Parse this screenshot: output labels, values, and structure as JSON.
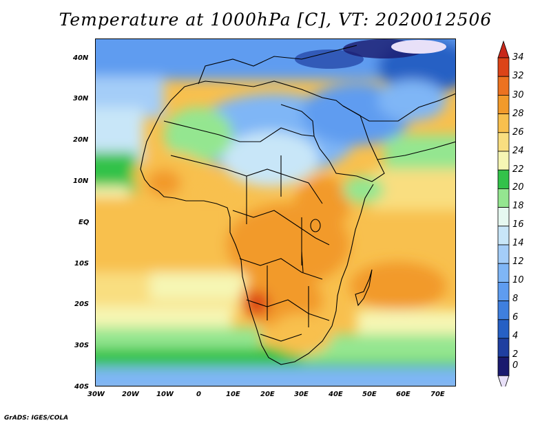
{
  "title": "Temperature at 1000hPa [C], VT: 2020012506",
  "credit": "GrADS: IGES/COLA",
  "map": {
    "region": "Africa",
    "lon_range": [
      -30,
      75
    ],
    "lat_range": [
      -40,
      45
    ],
    "x_ticks": [
      "30W",
      "20W",
      "10W",
      "0",
      "10E",
      "20E",
      "30E",
      "40E",
      "50E",
      "60E",
      "70E"
    ],
    "y_ticks": [
      "40N",
      "30N",
      "20N",
      "10N",
      "EQ",
      "10S",
      "20S",
      "30S",
      "40S"
    ]
  },
  "colorbar": {
    "labels": [
      "34",
      "32",
      "30",
      "28",
      "26",
      "24",
      "22",
      "20",
      "18",
      "16",
      "14",
      "12",
      "10",
      "8",
      "6",
      "4",
      "2",
      "0"
    ],
    "colors": {
      "0_2": "#1a1a6e",
      "2_4": "#1f3fa0",
      "4_6": "#2660c4",
      "6_8": "#3f7fde",
      "8_10": "#5e9cf0",
      "10_12": "#7fb6f6",
      "12_14": "#a4cdf8",
      "14_16": "#c8e6f8",
      "16_18": "#e6f8f0",
      "18_20": "#94e690",
      "20_22": "#33c24a",
      "22_24": "#f6f6b4",
      "24_26": "#f9de80",
      "26_28": "#f8c04e",
      "28_30": "#f29a2a",
      "30_32": "#ec7220",
      "32_34": "#dc4418",
      "above": "#c8281a",
      "below": "#e8e0f8"
    }
  }
}
